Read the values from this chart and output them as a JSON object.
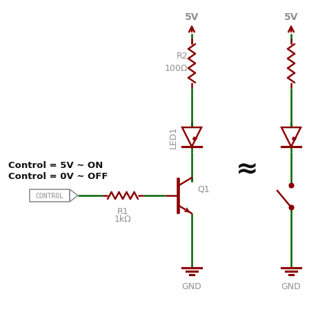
{
  "bg_color": "#ffffff",
  "dark_red": "#8B0000",
  "green": "#006400",
  "gray": "#909090",
  "black": "#111111",
  "fig_width": 4.74,
  "fig_height": 4.6,
  "label_5V_left": "5V",
  "label_5V_right": "5V",
  "label_R2": "R2",
  "label_R2_val": "100Ω",
  "label_LED1": "LED1",
  "label_Q1": "Q1",
  "label_R1": "R1",
  "label_R1_val": "1kΩ",
  "label_GND_left": "GND",
  "label_GND_right": "GND",
  "label_control": "CONTROL",
  "label_text1": "Control = 5V ~ ON",
  "label_text2": "Control = 0V ~ OFF",
  "approx_symbol": "≈"
}
